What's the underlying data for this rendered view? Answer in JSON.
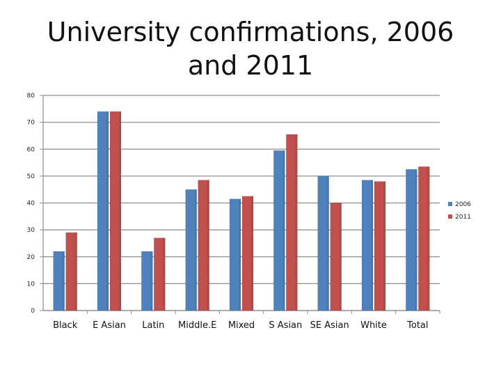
{
  "chart_data": {
    "type": "bar",
    "title": "University confirmations, 2006 and 2011",
    "xlabel": "",
    "ylabel": "",
    "ylim": [
      0,
      80
    ],
    "yticks": [
      0,
      10,
      20,
      30,
      40,
      50,
      60,
      70,
      80
    ],
    "grid": true,
    "legend_position": "right",
    "categories": [
      "Black",
      "E Asian",
      "Latin",
      "Middle.E",
      "Mixed",
      "S Asian",
      "SE Asian",
      "White",
      "Total"
    ],
    "series": [
      {
        "name": "2006",
        "color": "#4f81bd",
        "values": [
          22,
          74,
          22,
          45,
          41.5,
          59.5,
          50,
          48.5,
          52.5
        ]
      },
      {
        "name": "2011",
        "color": "#c0504d",
        "values": [
          29,
          74,
          27,
          48.5,
          42.5,
          65.5,
          40,
          48,
          53.5
        ]
      }
    ]
  }
}
